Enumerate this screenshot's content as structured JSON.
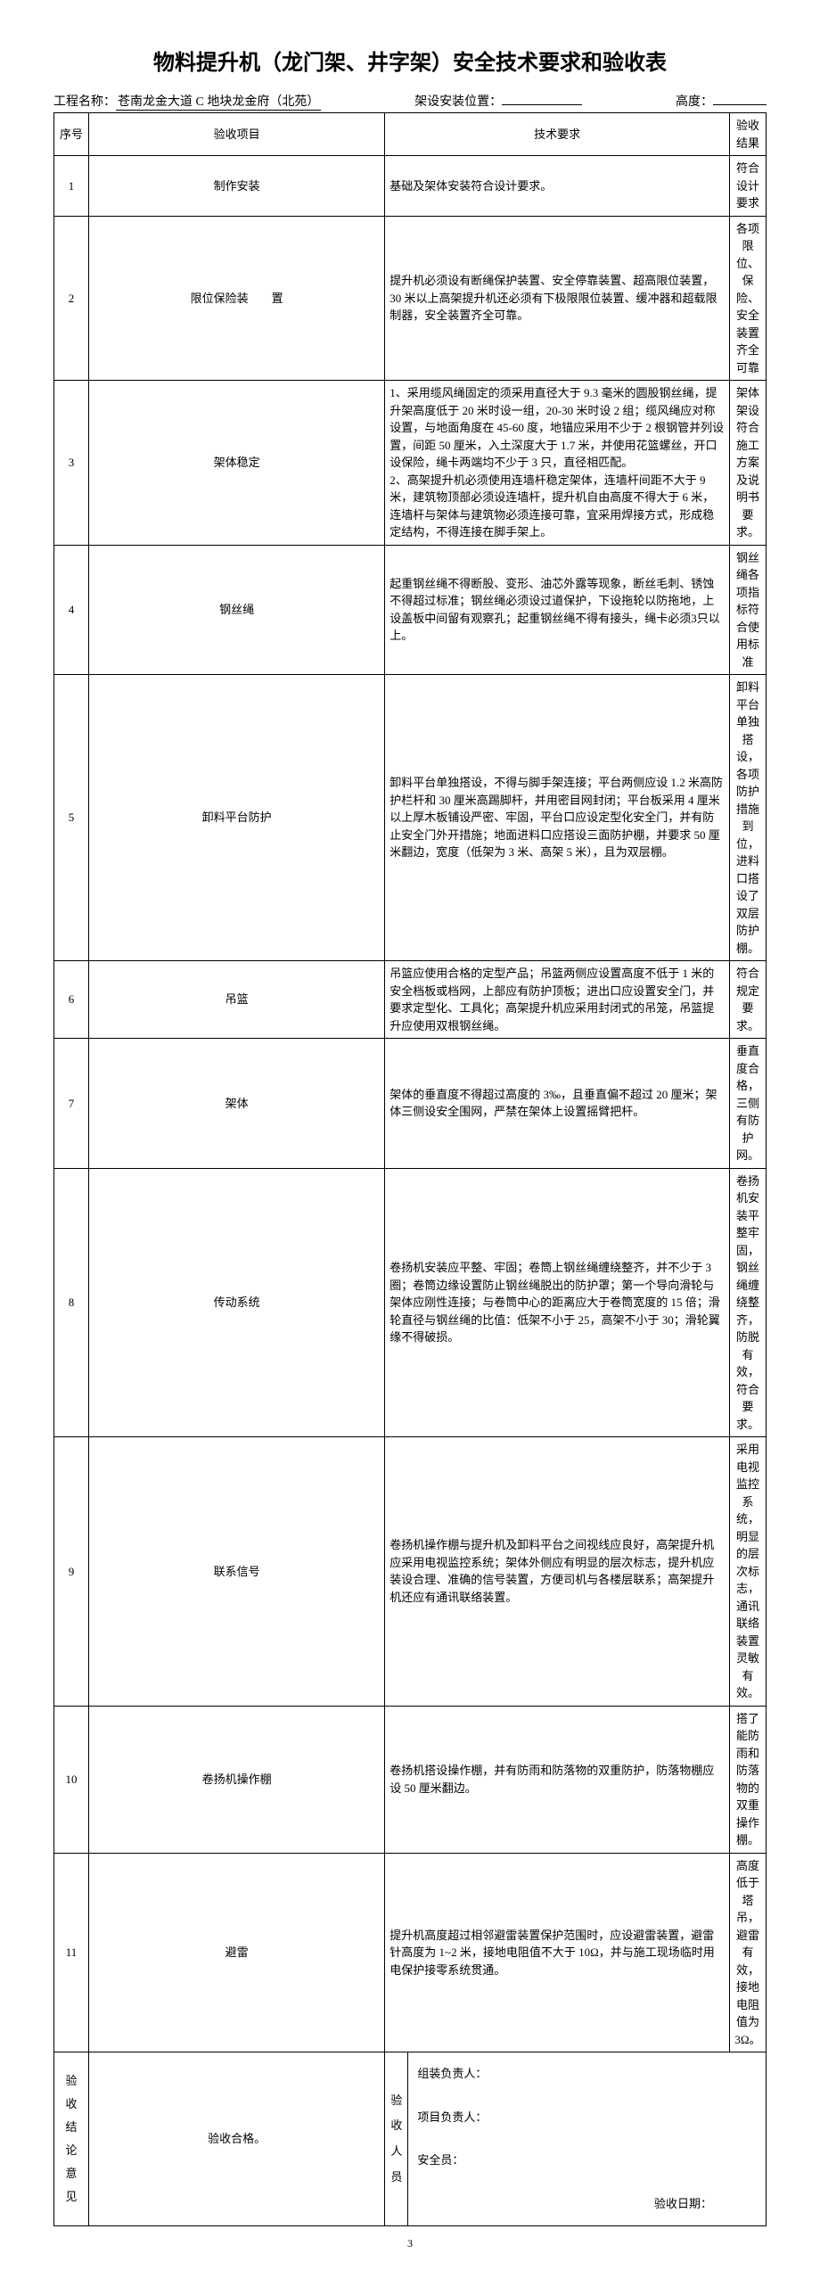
{
  "title": "物料提升机（龙门架、井字架）安全技术要求和验收表",
  "project_label": "工程名称：",
  "project_value": "苍南龙金大道 C 地块龙金府（北苑）",
  "position_label": "架设安装位置：",
  "height_label": "高度：",
  "headers": {
    "seq": "序号",
    "item": "验收项目",
    "req": "技术要求",
    "res": "验收结果"
  },
  "rows": [
    {
      "seq": "1",
      "item": "制作安装",
      "req": "基础及架体安装符合设计要求。",
      "res": "符合设计要求"
    },
    {
      "seq": "2",
      "item": "限位保险装　　置",
      "req": "提升机必须设有断绳保护装置、安全停靠装置、超高限位装置，30 米以上高架提升机还必须有下极限限位装置、缓冲器和超载限制器，安全装置齐全可靠。",
      "res": "各项限位、保险、安全装置齐全可靠"
    },
    {
      "seq": "3",
      "item": "架体稳定",
      "req": "1、采用缆风绳固定的须采用直径大于 9.3 毫米的圆股钢丝绳，提升架高度低于 20 米时设一组，20-30 米时设 2 组；缆风绳应对称设置，与地面角度在 45-60 度，地锚应采用不少于 2 根钢管并列设置，间距 50 厘米，入土深度大于 1.7 米，并使用花篮螺丝，开口设保险，绳卡两端均不少于 3 只，直径相匹配。\n2、高架提升机必须使用连墙杆稳定架体，连墙杆间距不大于 9 米，建筑物顶部必须设连墙杆，提升机自由高度不得大于 6 米，连墙杆与架体与建筑物必须连接可靠，宜采用焊接方式，形成稳定结构，不得连接在脚手架上。",
      "res": "架体架设符合施工方案及说明书要求。"
    },
    {
      "seq": "4",
      "item": "钢丝绳",
      "req": "起重钢丝绳不得断股、变形、油芯外露等现象，断丝毛刺、锈蚀不得超过标准；钢丝绳必须设过道保护，下设拖轮以防拖地，上设盖板中间留有观察孔；起重钢丝绳不得有接头，绳卡必须3只以上。",
      "res": "钢丝绳各项指标符合使用标准"
    },
    {
      "seq": "5",
      "item": "卸料平台防护",
      "req": "卸料平台单独搭设，不得与脚手架连接；平台两侧应设 1.2 米高防护栏杆和 30 厘米高踢脚杆，并用密目网封闭；平台板采用 4 厘米以上厚木板铺设严密、牢固，平台口应设定型化安全门，并有防止安全门外开措施；地面进料口应搭设三面防护棚，并要求 50 厘米翻边，宽度（低架为 3 米、高架 5 米），且为双层棚。",
      "res": "卸料平台单独搭设，各项防护措施到位，进料口搭设了双层防护棚。"
    },
    {
      "seq": "6",
      "item": "吊篮",
      "req": "吊篮应使用合格的定型产品；吊篮两侧应设置高度不低于 1 米的安全档板或档网，上部应有防护顶板；进出口应设置安全门，并要求定型化、工具化；高架提升机应采用封闭式的吊笼，吊篮提升应使用双根钢丝绳。",
      "res": "符合规定要求。"
    },
    {
      "seq": "7",
      "item": "架体",
      "req": "架体的垂直度不得超过高度的 3‰，且垂直偏不超过 20 厘米；架体三侧设安全围网，严禁在架体上设置摇臂把杆。",
      "res": "垂直度合格，三侧有防护网。"
    },
    {
      "seq": "8",
      "item": "传动系统",
      "req": "卷扬机安装应平整、牢固；卷筒上钢丝绳缠绕整齐，并不少于 3 圈；卷筒边缘设置防止钢丝绳脱出的防护罩；第一个导向滑轮与架体应刚性连接；与卷筒中心的距离应大于卷筒宽度的 15 倍；滑轮直径与钢丝绳的比值：低架不小于 25，高架不小于 30；滑轮翼缘不得破损。",
      "res": "卷扬机安装平整牢固，钢丝绳缠绕整齐，防脱有效，符合要求。"
    },
    {
      "seq": "9",
      "item": "联系信号",
      "req": "卷扬机操作棚与提升机及卸料平台之间视线应良好，高架提升机应采用电视监控系统；架体外侧应有明显的层次标志，提升机应装设合理、准确的信号装置，方便司机与各楼层联系；高架提升机还应有通讯联络装置。",
      "res": "采用电视监控系统，明显的层次标志，通讯联络装置灵敏有效。"
    },
    {
      "seq": "10",
      "item": "卷扬机操作棚",
      "req": "卷扬机搭设操作棚，并有防雨和防落物的双重防护，防落物棚应设 50 厘米翻边。",
      "res": "搭了能防雨和防落物的双重操作棚。"
    },
    {
      "seq": "11",
      "item": "避雷",
      "req": "提升机高度超过相邻避雷装置保护范围时，应设避雷装置，避雷针高度为 1~2 米，接地电阻值不大于 10Ω，并与施工现场临时用电保护接零系统贯通。",
      "res": "高度低于塔吊，避雷有效，接地电阻值为 3Ω。"
    }
  ],
  "footer": {
    "conclusion_label": "验收结论意见",
    "conclusion_value": "验收合格。",
    "personnel_label": "验收人员",
    "assembly_lead": "组装负责人：",
    "project_lead": "项目负责人：",
    "safety_officer": "安全员：",
    "date_label": "验收日期："
  },
  "page_number": "3"
}
